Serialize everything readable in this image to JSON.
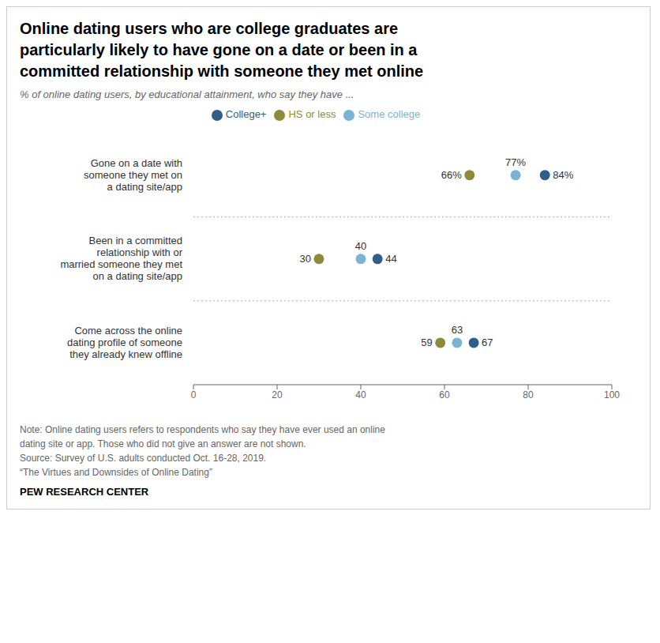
{
  "chart_data": {
    "type": "scatter",
    "title": "Online dating users who are college graduates are\nparticularly likely to have gone on a date or been in a\ncommitted relationship with someone they met online",
    "subtitle": "% of online dating users, by educational attainment, who say they have ...",
    "categories": [
      "Gone on a date with\nsomeone they met on\na dating site/app",
      "Been in a committed\nrelationship with or\nmarried someone they met\non a dating site/app",
      "Come across the online\ndating profile of someone\nthey already knew offline"
    ],
    "series": [
      {
        "name": "HS or less",
        "color": "#8b8b3a",
        "values": [
          66,
          30,
          59
        ],
        "value_labels": [
          "66%",
          "30",
          "59"
        ]
      },
      {
        "name": "Some college",
        "color": "#7ab3d4",
        "values": [
          77,
          40,
          63
        ],
        "value_labels": [
          "77%",
          "40",
          "63"
        ]
      },
      {
        "name": "College+",
        "color": "#2e5f8a",
        "values": [
          84,
          44,
          67
        ],
        "value_labels": [
          "84%",
          "44",
          "67"
        ]
      }
    ],
    "xlim": [
      0,
      100
    ],
    "xticks": [
      0,
      20,
      40,
      60,
      80,
      100
    ],
    "grid": false,
    "legend": "top",
    "data_labels": true,
    "notes": [
      "Note: Online dating users refers to respondents who say they have ever used an online",
      "dating site or app. Those who did not give an answer are not shown.",
      "Source: Survey of U.S. adults conducted Oct. 16-28, 2019.",
      "“The Virtues and Downsides of Online Dating”"
    ],
    "source": "PEW RESEARCH CENTER"
  }
}
